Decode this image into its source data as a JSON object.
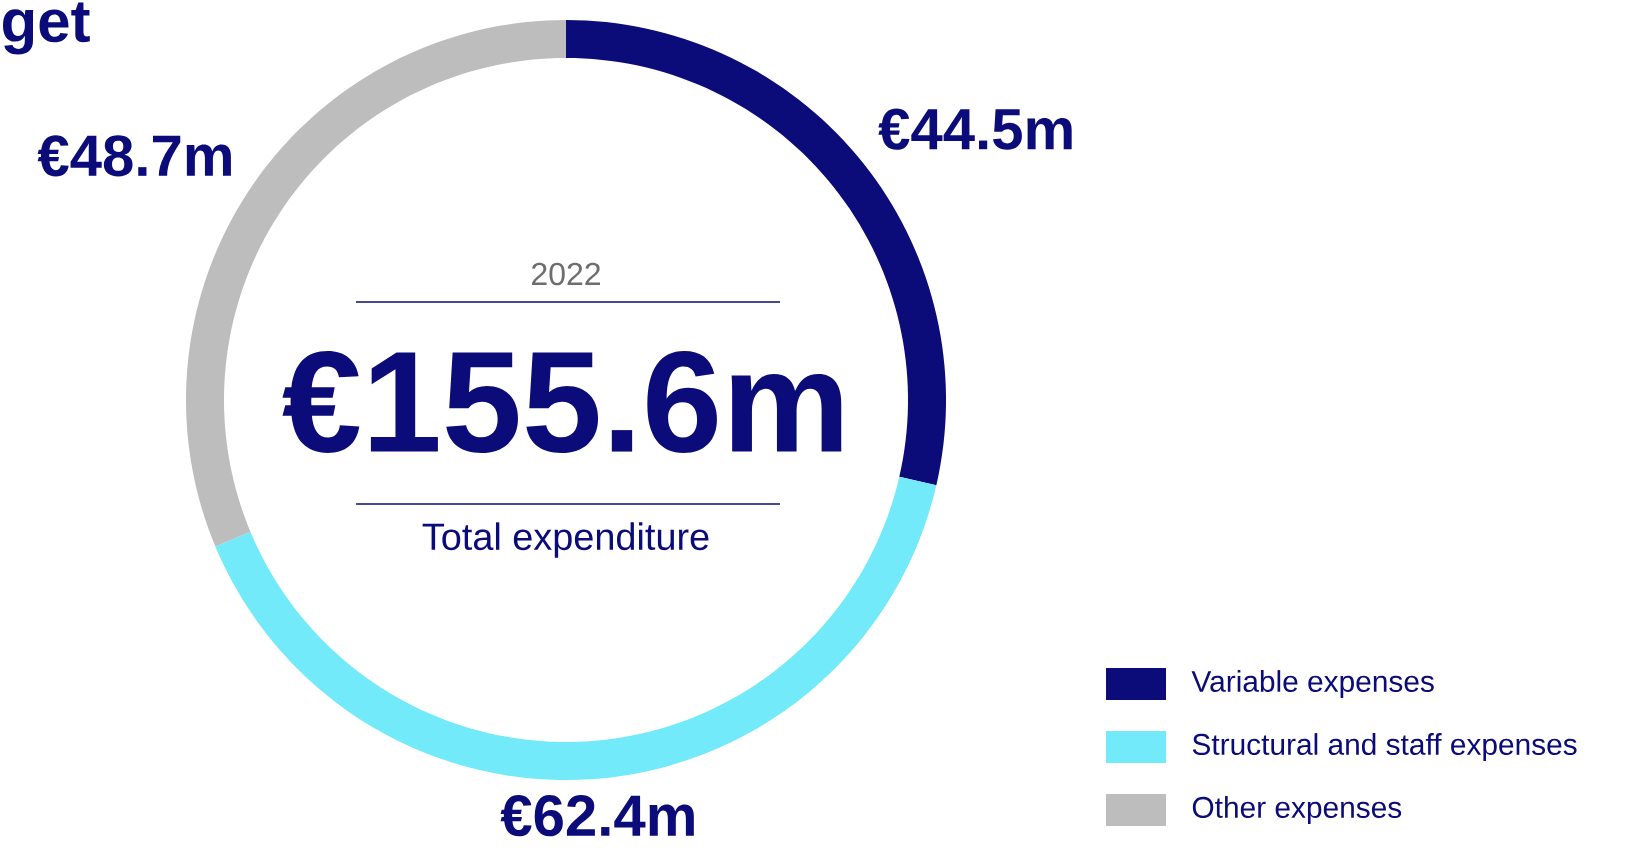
{
  "chart_data": {
    "type": "donut",
    "title": "get",
    "categories": [
      "Variable expenses",
      "Structural and staff expenses",
      "Other expenses"
    ],
    "values": [
      44.5,
      62.4,
      48.7
    ],
    "colors": [
      "#0b0b7a",
      "#72eafa",
      "#bdbdbd"
    ],
    "value_labels": [
      "€44.5m",
      "€62.4m",
      "€48.7m"
    ],
    "annotations": [
      "2022",
      "€155.6m",
      "Total expenditure"
    ],
    "legend": "bottom right"
  }
}
